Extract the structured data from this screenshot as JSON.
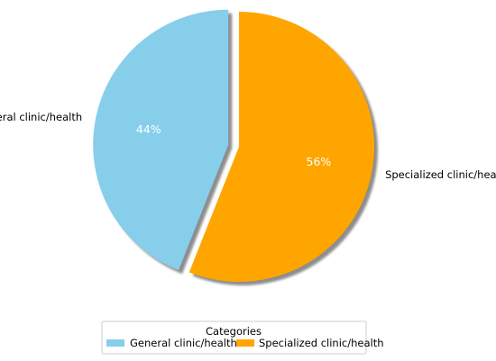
{
  "chart_data": {
    "type": "pie",
    "title": "",
    "slices": [
      {
        "label": "General clinic/health",
        "value": 44,
        "pct_label": "44%",
        "color": "#87ceeb",
        "exploded": true
      },
      {
        "label": "Specialized clinic/health",
        "value": 56,
        "pct_label": "56%",
        "color": "#ffa500",
        "exploded": false
      }
    ],
    "shadow": true,
    "start_angle_deg": 90,
    "legend": {
      "title": "Categories",
      "placement": "bottom-center",
      "entries": [
        "General clinic/health",
        "Specialized clinic/health"
      ]
    }
  }
}
